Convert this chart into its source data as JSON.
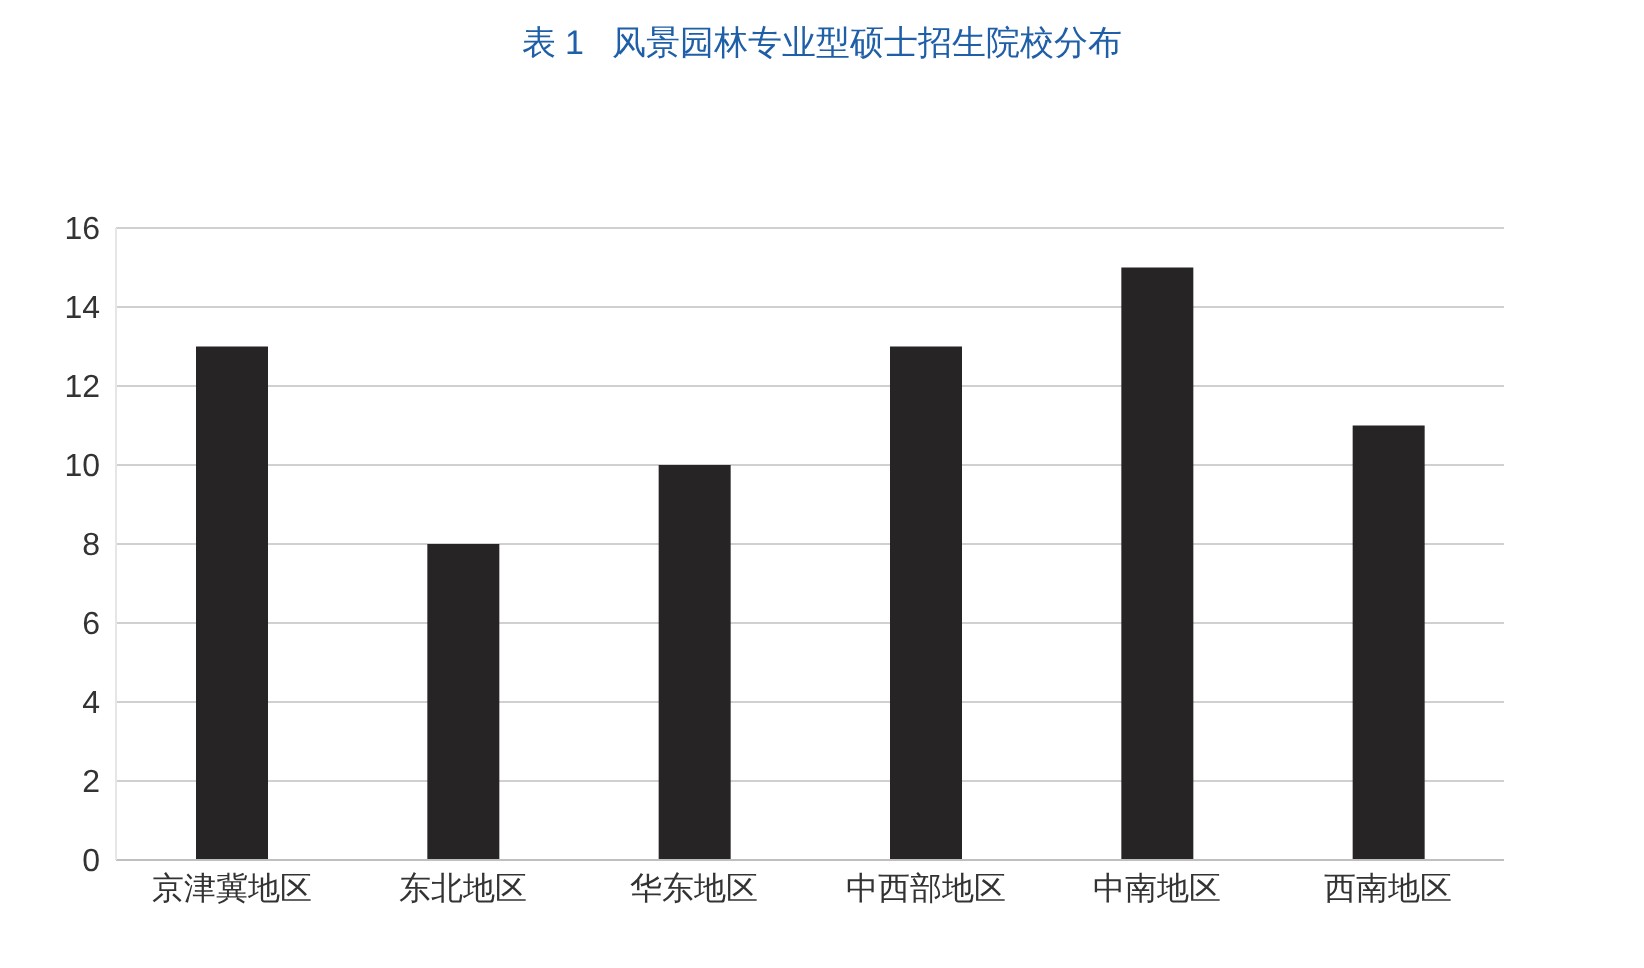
{
  "chart_data": {
    "type": "bar",
    "title": "表 1   风景园林专业型硕士招生院校分布",
    "categories": [
      "京津冀地区",
      "东北地区",
      "华东地区",
      "中西部地区",
      "中南地区",
      "西南地区"
    ],
    "values": [
      13,
      8,
      10,
      13,
      15,
      11
    ],
    "color": "#262424",
    "ylim": [
      0,
      16
    ],
    "yticks": [
      0,
      2,
      4,
      6,
      8,
      10,
      12,
      14,
      16
    ],
    "grid": "y"
  }
}
